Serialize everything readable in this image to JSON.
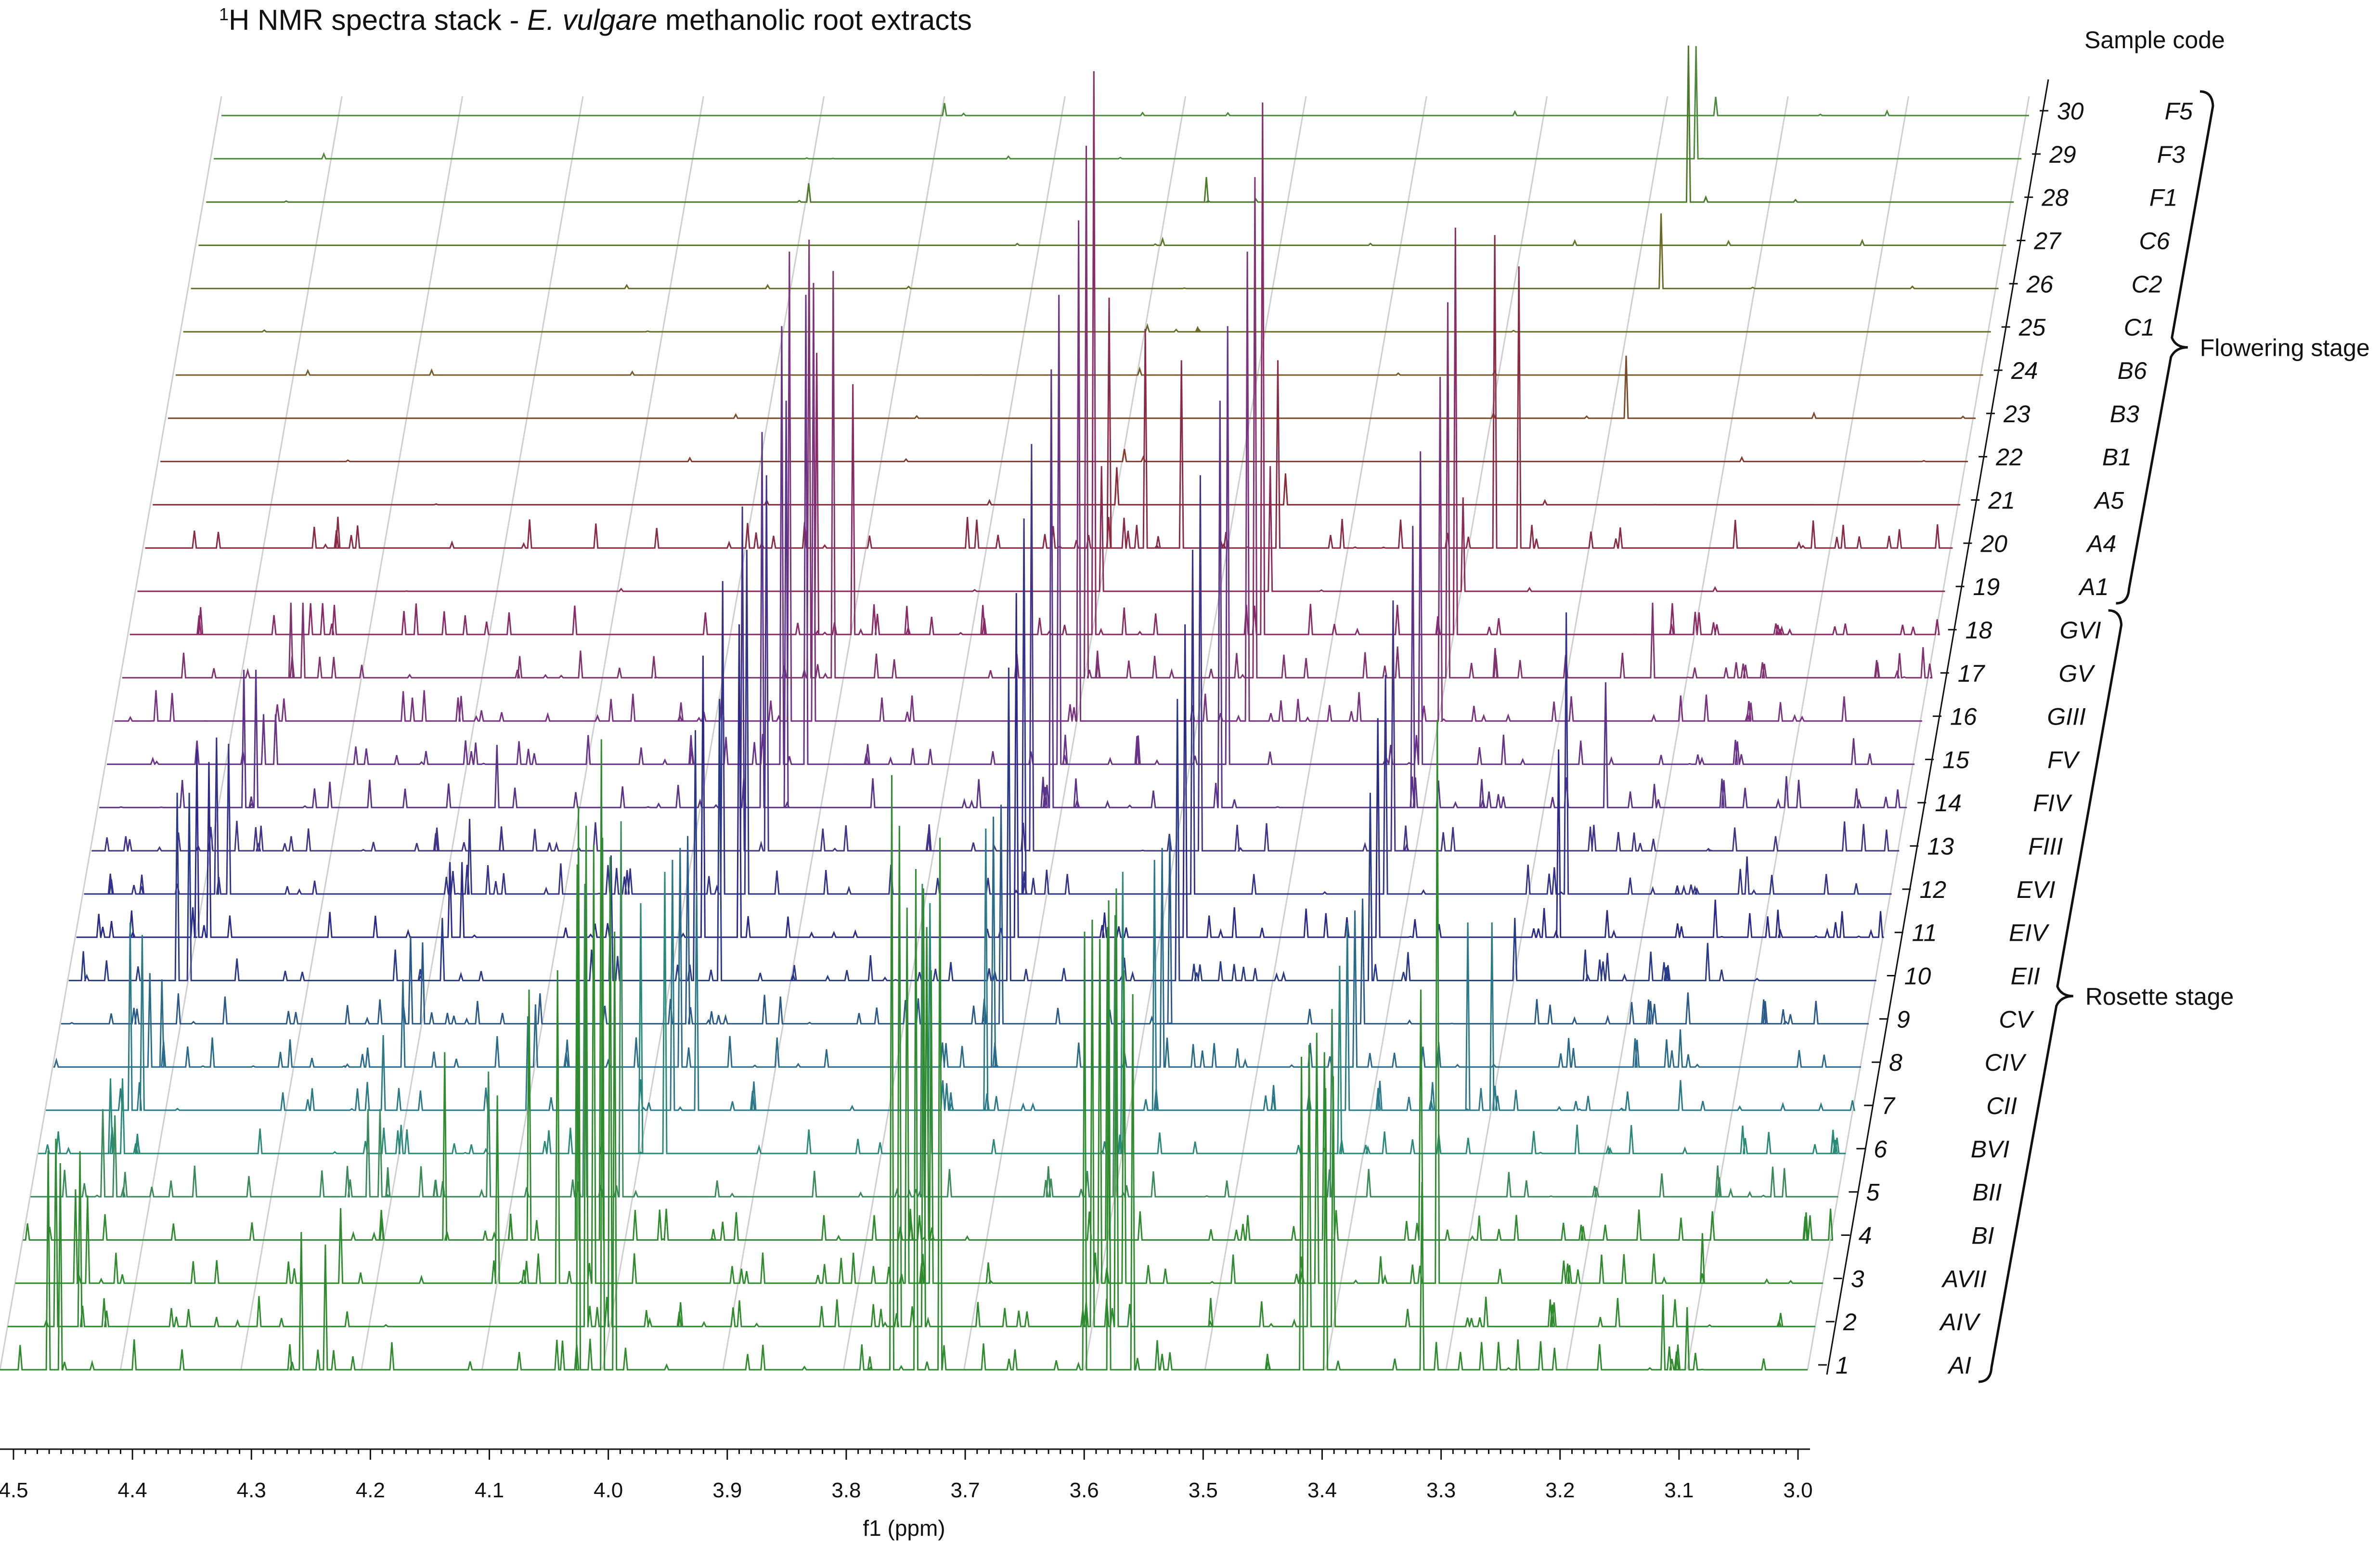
{
  "chart_data": {
    "type": "line",
    "title_parts": {
      "sup": "1",
      "pre": "H NMR spectra stack - ",
      "italic": "E. vulgare",
      "post": " methanolic root extracts"
    },
    "xlabel": "f1 (ppm)",
    "xlim": [
      4.5,
      3.0
    ],
    "x_ticks": [
      "4.5",
      "4.4",
      "4.3",
      "4.2",
      "4.1",
      "4.0",
      "3.9",
      "3.8",
      "3.7",
      "3.6",
      "3.5",
      "3.4",
      "3.3",
      "3.2",
      "3.1",
      "3.0"
    ],
    "sample_code_header": "Sample code",
    "rows": [
      {
        "n": "1",
        "code": "AI",
        "color": "#2e8b2e",
        "peaks": [
          [
            4.46,
            0.35
          ],
          [
            4.45,
            0.33
          ],
          [
            4.25,
            0.22
          ],
          [
            4.23,
            0.2
          ],
          [
            4.02,
            0.9
          ],
          [
            4.0,
            0.85
          ],
          [
            3.99,
            0.7
          ],
          [
            3.76,
            0.95
          ],
          [
            3.74,
            0.8
          ],
          [
            3.72,
            0.85
          ],
          [
            3.6,
            0.7
          ],
          [
            3.58,
            0.75
          ],
          [
            3.56,
            0.6
          ],
          [
            3.42,
            0.5
          ],
          [
            3.4,
            0.45
          ],
          [
            3.32,
            0.3
          ],
          [
            3.12,
            0.12
          ],
          [
            3.1,
            0.1
          ]
        ]
      },
      {
        "n": "2",
        "code": "AIV",
        "color": "#2e8b2e",
        "peaks": [
          [
            4.46,
            0.3
          ],
          [
            4.44,
            0.28
          ],
          [
            4.02,
            0.8
          ],
          [
            4.0,
            0.75
          ],
          [
            3.76,
            0.8
          ],
          [
            3.74,
            0.7
          ],
          [
            3.6,
            0.65
          ],
          [
            3.58,
            0.7
          ],
          [
            3.42,
            0.45
          ],
          [
            3.4,
            0.4
          ]
        ]
      },
      {
        "n": "3",
        "code": "AVII",
        "color": "#2e8b2e",
        "peaks": [
          [
            4.45,
            0.15
          ],
          [
            4.44,
            0.14
          ],
          [
            4.23,
            0.12
          ],
          [
            4.1,
            0.3
          ],
          [
            4.05,
            0.5
          ],
          [
            4.02,
            0.7
          ],
          [
            3.76,
            0.6
          ],
          [
            3.74,
            0.5
          ],
          [
            3.6,
            0.55
          ],
          [
            3.58,
            0.5
          ],
          [
            3.42,
            0.4
          ],
          [
            3.32,
            0.9
          ],
          [
            3.1,
            0.08
          ]
        ]
      },
      {
        "n": "4",
        "code": "BI",
        "color": "#2e8b2e",
        "peaks": [
          [
            4.15,
            0.3
          ],
          [
            4.08,
            0.4
          ],
          [
            4.04,
            0.6
          ],
          [
            4.02,
            0.8
          ],
          [
            3.75,
            0.5
          ],
          [
            3.6,
            0.5
          ],
          [
            3.42,
            0.3
          ],
          [
            3.34,
            0.4
          ],
          [
            3.0,
            0.05
          ]
        ]
      },
      {
        "n": "5",
        "code": "BII",
        "color": "#3a8a5a",
        "peaks": [
          [
            4.44,
            0.14
          ],
          [
            4.43,
            0.13
          ],
          [
            4.22,
            0.14
          ],
          [
            4.21,
            0.14
          ],
          [
            4.12,
            0.2
          ],
          [
            4.04,
            0.5
          ],
          [
            4.01,
            0.6
          ],
          [
            3.76,
            0.5
          ],
          [
            3.6,
            0.45
          ],
          [
            3.42,
            0.3
          ],
          [
            3.1,
            0.05
          ]
        ]
      },
      {
        "n": "6",
        "code": "BVI",
        "color": "#2a8a7a",
        "peaks": [
          [
            4.44,
            0.12
          ],
          [
            4.43,
            0.12
          ],
          [
            4.0,
            0.4
          ],
          [
            3.98,
            0.45
          ],
          [
            3.76,
            0.4
          ],
          [
            3.6,
            0.45
          ],
          [
            3.42,
            0.3
          ]
        ]
      },
      {
        "n": "7",
        "code": "CII",
        "color": "#2a7a8a",
        "peaks": [
          [
            4.43,
            0.3
          ],
          [
            4.42,
            0.28
          ],
          [
            4.22,
            0.12
          ],
          [
            4.1,
            0.15
          ],
          [
            3.98,
            0.4
          ],
          [
            3.96,
            0.35
          ],
          [
            3.72,
            0.45
          ],
          [
            3.58,
            0.4
          ],
          [
            3.42,
            0.3
          ],
          [
            3.32,
            0.3
          ],
          [
            3.3,
            0.3
          ]
        ]
      },
      {
        "n": "8",
        "code": "CIV",
        "color": "#2a6a8a",
        "peaks": [
          [
            4.42,
            0.15
          ],
          [
            4.41,
            0.14
          ],
          [
            4.21,
            0.14
          ],
          [
            4.1,
            0.1
          ],
          [
            3.98,
            0.35
          ],
          [
            3.72,
            0.4
          ],
          [
            3.58,
            0.35
          ],
          [
            3.42,
            0.25
          ],
          [
            3.15,
            0.06
          ]
        ]
      },
      {
        "n": "9",
        "code": "CV",
        "color": "#2a5a8a",
        "peaks": [
          [
            4.21,
            0.14
          ],
          [
            4.2,
            0.13
          ],
          [
            3.98,
            0.3
          ],
          [
            3.72,
            0.35
          ],
          [
            3.58,
            0.3
          ],
          [
            3.42,
            0.2
          ],
          [
            3.15,
            0.05
          ]
        ]
      },
      {
        "n": "10",
        "code": "EII",
        "color": "#2a3a8a",
        "peaks": [
          [
            4.41,
            0.3
          ],
          [
            4.4,
            0.3
          ],
          [
            4.19,
            0.1
          ],
          [
            4.05,
            0.2
          ],
          [
            3.98,
            0.4
          ],
          [
            3.96,
            0.45
          ],
          [
            3.72,
            0.5
          ],
          [
            3.58,
            0.45
          ],
          [
            3.42,
            0.3
          ],
          [
            3.3,
            0.1
          ],
          [
            3.14,
            0.06
          ]
        ]
      },
      {
        "n": "11",
        "code": "EIV",
        "color": "#2a2a8a",
        "peaks": [
          [
            4.4,
            0.3
          ],
          [
            4.39,
            0.28
          ],
          [
            4.19,
            0.12
          ],
          [
            4.18,
            0.12
          ],
          [
            3.98,
            0.45
          ],
          [
            3.95,
            0.5
          ],
          [
            3.72,
            0.55
          ],
          [
            3.58,
            0.5
          ],
          [
            3.42,
            0.35
          ],
          [
            3.27,
            0.3
          ],
          [
            3.14,
            0.06
          ]
        ]
      },
      {
        "n": "12",
        "code": "EVI",
        "color": "#33338a",
        "peaks": [
          [
            4.39,
            0.25
          ],
          [
            4.38,
            0.24
          ],
          [
            4.18,
            0.12
          ],
          [
            3.97,
            0.5
          ],
          [
            3.95,
            0.55
          ],
          [
            3.72,
            0.6
          ],
          [
            3.58,
            0.55
          ],
          [
            3.42,
            0.35
          ],
          [
            3.27,
            0.45
          ],
          [
            3.12,
            0.06
          ]
        ]
      },
      {
        "n": "13",
        "code": "FIII",
        "color": "#44338a",
        "peaks": [
          [
            3.96,
            0.55
          ],
          [
            3.94,
            0.6
          ],
          [
            3.72,
            0.65
          ],
          [
            3.58,
            0.6
          ],
          [
            3.42,
            0.4
          ]
        ]
      },
      {
        "n": "14",
        "code": "FIV",
        "color": "#5a338a",
        "peaks": [
          [
            4.38,
            0.22
          ],
          [
            4.37,
            0.22
          ],
          [
            4.17,
            0.1
          ],
          [
            3.95,
            0.6
          ],
          [
            3.93,
            0.65
          ],
          [
            3.71,
            0.7
          ],
          [
            3.57,
            0.65
          ],
          [
            3.41,
            0.45
          ],
          [
            3.25,
            0.2
          ],
          [
            3.1,
            0.05
          ]
        ]
      },
      {
        "n": "15",
        "code": "FV",
        "color": "#6a338a",
        "peaks": [
          [
            4.37,
            0.08
          ],
          [
            4.36,
            0.08
          ],
          [
            3.94,
            0.7
          ],
          [
            3.92,
            0.75
          ],
          [
            3.71,
            0.75
          ],
          [
            3.57,
            0.7
          ],
          [
            3.41,
            0.5
          ]
        ]
      },
      {
        "n": "16",
        "code": "GIII",
        "color": "#7a3380",
        "peaks": [
          [
            3.94,
            0.75
          ],
          [
            3.92,
            0.7
          ],
          [
            3.7,
            0.8
          ],
          [
            3.56,
            0.75
          ],
          [
            3.4,
            0.55
          ]
        ]
      },
      {
        "n": "17",
        "code": "GV",
        "color": "#803370",
        "peaks": [
          [
            4.36,
            0.12
          ],
          [
            4.35,
            0.12
          ],
          [
            3.93,
            0.7
          ],
          [
            3.91,
            0.65
          ],
          [
            3.7,
            0.85
          ],
          [
            3.56,
            0.8
          ],
          [
            3.4,
            0.6
          ],
          [
            3.23,
            0.12
          ]
        ]
      },
      {
        "n": "18",
        "code": "GVI",
        "color": "#8a2a66",
        "peaks": [
          [
            4.35,
            0.05
          ],
          [
            4.34,
            0.05
          ],
          [
            3.93,
            0.45
          ],
          [
            3.9,
            0.4
          ],
          [
            3.7,
            0.9
          ],
          [
            3.56,
            0.85
          ],
          [
            3.4,
            0.65
          ],
          [
            3.22,
            0.05
          ]
        ]
      },
      {
        "n": "19",
        "code": "A1",
        "color": "#8a2a55",
        "peaks": [
          [
            3.7,
            0.2
          ],
          [
            3.56,
            0.2
          ],
          [
            3.4,
            0.15
          ]
        ]
      },
      {
        "n": "20",
        "code": "A4",
        "color": "#8a2a44",
        "peaks": [
          [
            4.34,
            0.05
          ],
          [
            4.0,
            0.04
          ],
          [
            3.7,
            0.4
          ],
          [
            3.67,
            0.35
          ],
          [
            3.64,
            0.3
          ],
          [
            3.56,
            0.3
          ],
          [
            3.38,
            0.5
          ],
          [
            3.36,
            0.45
          ]
        ]
      },
      {
        "n": "21",
        "code": "A5",
        "color": "#8a2a33",
        "peaks": [
          [
            3.7,
            0.06
          ],
          [
            3.56,
            0.05
          ]
        ]
      },
      {
        "n": "22",
        "code": "B1",
        "color": "#8a3a2a",
        "peaks": [
          [
            3.7,
            0.02
          ]
        ]
      },
      {
        "n": "23",
        "code": "B3",
        "color": "#7a4a2a",
        "peaks": [
          [
            3.29,
            0.1
          ]
        ]
      },
      {
        "n": "24",
        "code": "B6",
        "color": "#7a5a2a",
        "peaks": [
          [
            3.7,
            0.01
          ]
        ]
      },
      {
        "n": "25",
        "code": "C1",
        "color": "#6a6a2a",
        "peaks": [
          [
            3.7,
            0.01
          ]
        ]
      },
      {
        "n": "26",
        "code": "C2",
        "color": "#6a6a22",
        "peaks": [
          [
            3.28,
            0.12
          ]
        ]
      },
      {
        "n": "27",
        "code": "C6",
        "color": "#5a7a2a",
        "peaks": [
          [
            3.7,
            0.01
          ]
        ]
      },
      {
        "n": "28",
        "code": "F1",
        "color": "#4a7a2a",
        "peaks": [
          [
            4.0,
            0.03
          ],
          [
            3.67,
            0.04
          ],
          [
            3.27,
            0.25
          ]
        ]
      },
      {
        "n": "29",
        "code": "F3",
        "color": "#4a8a3a",
        "peaks": [
          [
            3.27,
            0.18
          ]
        ]
      },
      {
        "n": "30",
        "code": "F5",
        "color": "#4a8a3a",
        "peaks": [
          [
            3.9,
            0.02
          ],
          [
            3.26,
            0.03
          ]
        ]
      }
    ],
    "groups": [
      {
        "label": "Rosette stage",
        "rows": [
          "1",
          "18"
        ]
      },
      {
        "label": "Flowering stage",
        "rows": [
          "19",
          "30"
        ]
      }
    ]
  }
}
